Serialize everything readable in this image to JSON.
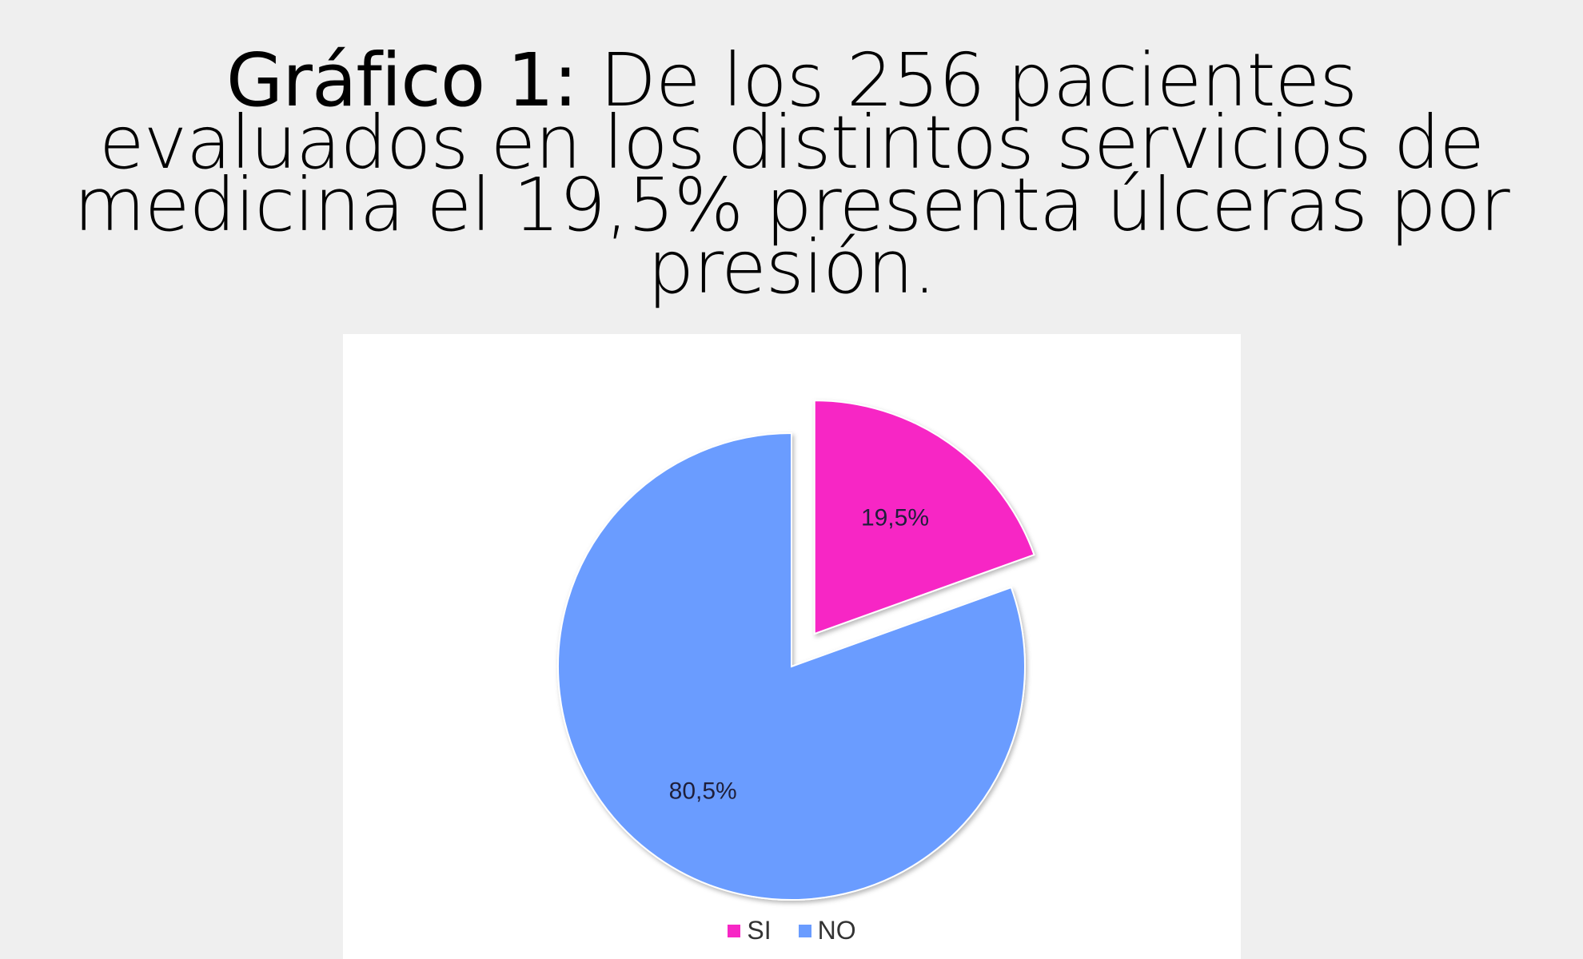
{
  "heading": {
    "prefix": "Gráfico 1:",
    "text": " De los 256 pacientes evaluados en los distintos servicios de medicina el 19,5% presenta úlceras por presión."
  },
  "chart_data": {
    "type": "pie",
    "title": "",
    "slices": [
      {
        "label": "SI",
        "value": 19.5,
        "display": "19,5%",
        "color": "#f727c5",
        "exploded": true
      },
      {
        "label": "NO",
        "value": 80.5,
        "display": "80,5%",
        "color": "#6a9cff",
        "exploded": false
      }
    ],
    "legend": {
      "position": "bottom",
      "entries": [
        "SI",
        "NO"
      ]
    },
    "start_angle": "top",
    "direction": "clockwise"
  }
}
